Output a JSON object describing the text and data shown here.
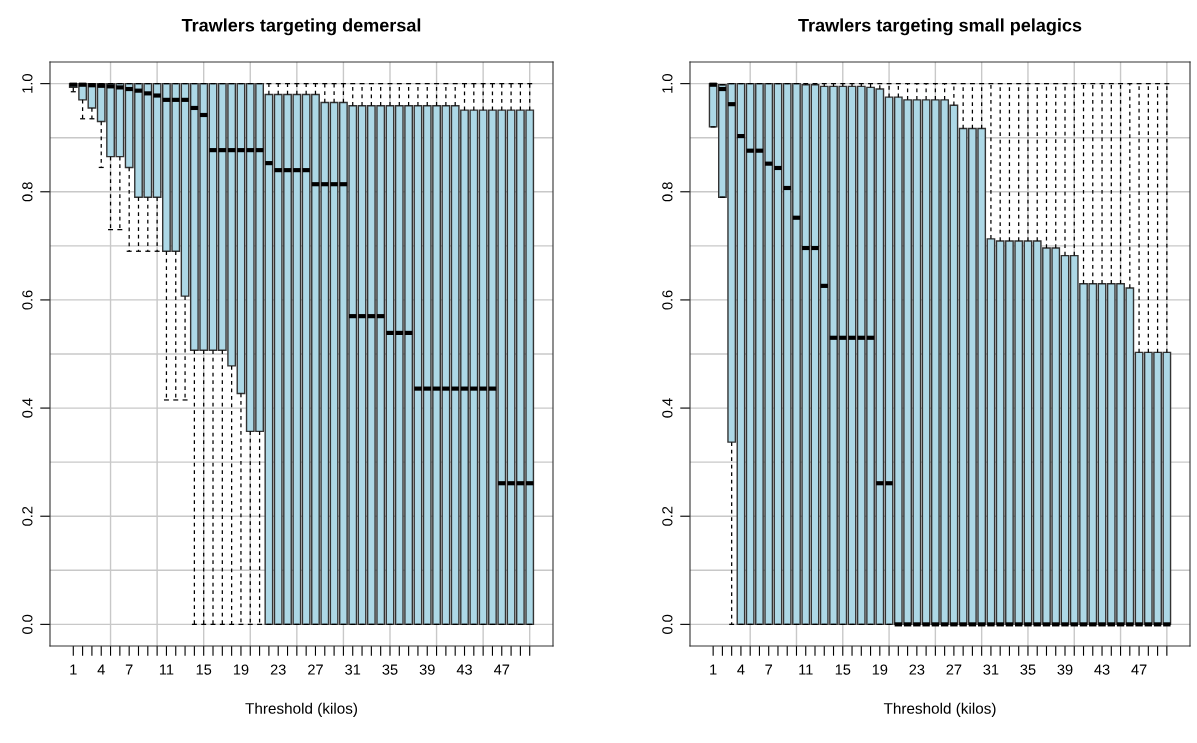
{
  "chart_data": [
    {
      "type": "box",
      "title": "Trawlers targeting demersal",
      "xlabel": "Threshold (kilos)",
      "color": "#add8e6",
      "grid": true,
      "categories": [
        "1",
        null,
        null,
        "4",
        null,
        null,
        "7",
        null,
        null,
        null,
        "11",
        null,
        null,
        null,
        "15",
        null,
        null,
        null,
        "19",
        null,
        null,
        null,
        "23",
        null,
        null,
        null,
        "27",
        null,
        null,
        null,
        "31",
        null,
        null,
        null,
        "35",
        null,
        null,
        null,
        "39",
        null,
        null,
        null,
        "43",
        null,
        null,
        null,
        "47",
        null,
        null,
        null
      ],
      "ylim": [
        -0.04,
        1.04
      ],
      "yticks": [
        {
          "value": 0,
          "label": "0.0"
        },
        {
          "value": 0.2,
          "label": "0.2"
        },
        {
          "value": 0.4,
          "label": "0.4"
        },
        {
          "value": 0.6,
          "label": "0.6"
        },
        {
          "value": 0.8,
          "label": "0.8"
        },
        {
          "value": 1,
          "label": "1.0"
        }
      ],
      "boxes": [
        {
          "low": 0.985,
          "q1": 0.993,
          "median": 0.998,
          "q3": 1,
          "high": 1
        },
        {
          "low": 0.935,
          "q1": 0.97,
          "median": 0.998,
          "q3": 1,
          "high": 1
        },
        {
          "low": 0.935,
          "q1": 0.955,
          "median": 0.997,
          "q3": 1,
          "high": 1
        },
        {
          "low": 0.845,
          "q1": 0.93,
          "median": 0.996,
          "q3": 1,
          "high": 1
        },
        {
          "low": 0.73,
          "q1": 0.865,
          "median": 0.995,
          "q3": 1,
          "high": 1
        },
        {
          "low": 0.73,
          "q1": 0.865,
          "median": 0.993,
          "q3": 1,
          "high": 1
        },
        {
          "low": 0.69,
          "q1": 0.845,
          "median": 0.99,
          "q3": 1,
          "high": 1
        },
        {
          "low": 0.69,
          "q1": 0.79,
          "median": 0.987,
          "q3": 1,
          "high": 1
        },
        {
          "low": 0.69,
          "q1": 0.79,
          "median": 0.982,
          "q3": 1,
          "high": 1
        },
        {
          "low": 0.69,
          "q1": 0.79,
          "median": 0.978,
          "q3": 1,
          "high": 1
        },
        {
          "low": 0.415,
          "q1": 0.69,
          "median": 0.97,
          "q3": 1,
          "high": 1
        },
        {
          "low": 0.415,
          "q1": 0.69,
          "median": 0.97,
          "q3": 1,
          "high": 1
        },
        {
          "low": 0.415,
          "q1": 0.607,
          "median": 0.97,
          "q3": 1,
          "high": 1
        },
        {
          "low": 0,
          "q1": 0.507,
          "median": 0.955,
          "q3": 1,
          "high": 1
        },
        {
          "low": 0,
          "q1": 0.507,
          "median": 0.942,
          "q3": 1,
          "high": 1
        },
        {
          "low": 0,
          "q1": 0.507,
          "median": 0.877,
          "q3": 1,
          "high": 1
        },
        {
          "low": 0,
          "q1": 0.507,
          "median": 0.877,
          "q3": 1,
          "high": 1
        },
        {
          "low": 0,
          "q1": 0.478,
          "median": 0.877,
          "q3": 1,
          "high": 1
        },
        {
          "low": 0,
          "q1": 0.427,
          "median": 0.877,
          "q3": 1,
          "high": 1
        },
        {
          "low": 0,
          "q1": 0.357,
          "median": 0.877,
          "q3": 1,
          "high": 1
        },
        {
          "low": 0,
          "q1": 0.357,
          "median": 0.877,
          "q3": 1,
          "high": 1
        },
        {
          "low": 0,
          "q1": 0,
          "median": 0.853,
          "q3": 0.98,
          "high": 1
        },
        {
          "low": 0,
          "q1": 0,
          "median": 0.84,
          "q3": 0.98,
          "high": 1
        },
        {
          "low": 0,
          "q1": 0,
          "median": 0.84,
          "q3": 0.98,
          "high": 1
        },
        {
          "low": 0,
          "q1": 0,
          "median": 0.84,
          "q3": 0.98,
          "high": 1
        },
        {
          "low": 0,
          "q1": 0,
          "median": 0.84,
          "q3": 0.98,
          "high": 1
        },
        {
          "low": 0,
          "q1": 0,
          "median": 0.814,
          "q3": 0.98,
          "high": 1
        },
        {
          "low": 0,
          "q1": 0,
          "median": 0.814,
          "q3": 0.965,
          "high": 1
        },
        {
          "low": 0,
          "q1": 0,
          "median": 0.814,
          "q3": 0.965,
          "high": 1
        },
        {
          "low": 0,
          "q1": 0,
          "median": 0.814,
          "q3": 0.965,
          "high": 1
        },
        {
          "low": 0,
          "q1": 0,
          "median": 0.57,
          "q3": 0.959,
          "high": 1
        },
        {
          "low": 0,
          "q1": 0,
          "median": 0.57,
          "q3": 0.959,
          "high": 1
        },
        {
          "low": 0,
          "q1": 0,
          "median": 0.57,
          "q3": 0.959,
          "high": 1
        },
        {
          "low": 0,
          "q1": 0,
          "median": 0.57,
          "q3": 0.959,
          "high": 1
        },
        {
          "low": 0,
          "q1": 0,
          "median": 0.539,
          "q3": 0.959,
          "high": 1
        },
        {
          "low": 0,
          "q1": 0,
          "median": 0.539,
          "q3": 0.959,
          "high": 1
        },
        {
          "low": 0,
          "q1": 0,
          "median": 0.539,
          "q3": 0.959,
          "high": 1
        },
        {
          "low": 0,
          "q1": 0,
          "median": 0.436,
          "q3": 0.959,
          "high": 1
        },
        {
          "low": 0,
          "q1": 0,
          "median": 0.436,
          "q3": 0.959,
          "high": 1
        },
        {
          "low": 0,
          "q1": 0,
          "median": 0.436,
          "q3": 0.959,
          "high": 1
        },
        {
          "low": 0,
          "q1": 0,
          "median": 0.436,
          "q3": 0.959,
          "high": 1
        },
        {
          "low": 0,
          "q1": 0,
          "median": 0.436,
          "q3": 0.959,
          "high": 1
        },
        {
          "low": 0,
          "q1": 0,
          "median": 0.436,
          "q3": 0.951,
          "high": 1
        },
        {
          "low": 0,
          "q1": 0,
          "median": 0.436,
          "q3": 0.951,
          "high": 1
        },
        {
          "low": 0,
          "q1": 0,
          "median": 0.436,
          "q3": 0.951,
          "high": 1
        },
        {
          "low": 0,
          "q1": 0,
          "median": 0.436,
          "q3": 0.951,
          "high": 1
        },
        {
          "low": 0,
          "q1": 0,
          "median": 0.261,
          "q3": 0.951,
          "high": 1
        },
        {
          "low": 0,
          "q1": 0,
          "median": 0.261,
          "q3": 0.951,
          "high": 1
        },
        {
          "low": 0,
          "q1": 0,
          "median": 0.261,
          "q3": 0.951,
          "high": 1
        },
        {
          "low": 0,
          "q1": 0,
          "median": 0.261,
          "q3": 0.951,
          "high": 1
        }
      ]
    },
    {
      "type": "box",
      "title": "Trawlers targeting small pelagics",
      "xlabel": "Threshold (kilos)",
      "color": "#add8e6",
      "grid": true,
      "categories": [
        "1",
        null,
        null,
        "4",
        null,
        null,
        "7",
        null,
        null,
        null,
        "11",
        null,
        null,
        null,
        "15",
        null,
        null,
        null,
        "19",
        null,
        null,
        null,
        "23",
        null,
        null,
        null,
        "27",
        null,
        null,
        null,
        "31",
        null,
        null,
        null,
        "35",
        null,
        null,
        null,
        "39",
        null,
        null,
        null,
        "43",
        null,
        null,
        null,
        "47",
        null,
        null,
        null
      ],
      "ylim": [
        -0.04,
        1.04
      ],
      "yticks": [
        {
          "value": 0,
          "label": "0.0"
        },
        {
          "value": 0.2,
          "label": "0.2"
        },
        {
          "value": 0.4,
          "label": "0.4"
        },
        {
          "value": 0.6,
          "label": "0.6"
        },
        {
          "value": 0.8,
          "label": "0.8"
        },
        {
          "value": 1,
          "label": "1.0"
        }
      ],
      "boxes": [
        {
          "low": 0.92,
          "q1": 0.92,
          "median": 0.998,
          "q3": 1,
          "high": 1
        },
        {
          "low": 0.79,
          "q1": 0.79,
          "median": 0.99,
          "q3": 0.998,
          "high": 0.998
        },
        {
          "low": 0,
          "q1": 0.337,
          "median": 0.962,
          "q3": 1,
          "high": 1
        },
        {
          "low": 0,
          "q1": 0,
          "median": 0.903,
          "q3": 1,
          "high": 1
        },
        {
          "low": 0,
          "q1": 0,
          "median": 0.876,
          "q3": 1,
          "high": 1
        },
        {
          "low": 0,
          "q1": 0,
          "median": 0.876,
          "q3": 1,
          "high": 1
        },
        {
          "low": 0,
          "q1": 0,
          "median": 0.852,
          "q3": 1,
          "high": 1
        },
        {
          "low": 0,
          "q1": 0,
          "median": 0.844,
          "q3": 1,
          "high": 1
        },
        {
          "low": 0,
          "q1": 0,
          "median": 0.807,
          "q3": 1,
          "high": 1
        },
        {
          "low": 0,
          "q1": 0,
          "median": 0.752,
          "q3": 1,
          "high": 1
        },
        {
          "low": 0,
          "q1": 0,
          "median": 0.696,
          "q3": 0.998,
          "high": 1
        },
        {
          "low": 0,
          "q1": 0,
          "median": 0.696,
          "q3": 0.998,
          "high": 1
        },
        {
          "low": 0,
          "q1": 0,
          "median": 0.626,
          "q3": 0.995,
          "high": 1
        },
        {
          "low": 0,
          "q1": 0,
          "median": 0.53,
          "q3": 0.995,
          "high": 1
        },
        {
          "low": 0,
          "q1": 0,
          "median": 0.53,
          "q3": 0.995,
          "high": 1
        },
        {
          "low": 0,
          "q1": 0,
          "median": 0.53,
          "q3": 0.995,
          "high": 1
        },
        {
          "low": 0,
          "q1": 0,
          "median": 0.53,
          "q3": 0.995,
          "high": 1
        },
        {
          "low": 0,
          "q1": 0,
          "median": 0.53,
          "q3": 0.993,
          "high": 1
        },
        {
          "low": 0,
          "q1": 0,
          "median": 0.261,
          "q3": 0.99,
          "high": 1
        },
        {
          "low": 0,
          "q1": 0,
          "median": 0.261,
          "q3": 0.975,
          "high": 1
        },
        {
          "low": 0,
          "q1": 0,
          "median": 0,
          "q3": 0.975,
          "high": 1
        },
        {
          "low": 0,
          "q1": 0,
          "median": 0,
          "q3": 0.97,
          "high": 1
        },
        {
          "low": 0,
          "q1": 0,
          "median": 0,
          "q3": 0.97,
          "high": 1
        },
        {
          "low": 0,
          "q1": 0,
          "median": 0,
          "q3": 0.97,
          "high": 1
        },
        {
          "low": 0,
          "q1": 0,
          "median": 0,
          "q3": 0.97,
          "high": 1
        },
        {
          "low": 0,
          "q1": 0,
          "median": 0,
          "q3": 0.97,
          "high": 1
        },
        {
          "low": 0,
          "q1": 0,
          "median": 0,
          "q3": 0.96,
          "high": 1
        },
        {
          "low": 0,
          "q1": 0,
          "median": 0,
          "q3": 0.917,
          "high": 1
        },
        {
          "low": 0,
          "q1": 0,
          "median": 0,
          "q3": 0.917,
          "high": 1
        },
        {
          "low": 0,
          "q1": 0,
          "median": 0,
          "q3": 0.917,
          "high": 1
        },
        {
          "low": 0,
          "q1": 0,
          "median": 0,
          "q3": 0.713,
          "high": 1
        },
        {
          "low": 0,
          "q1": 0,
          "median": 0,
          "q3": 0.709,
          "high": 1
        },
        {
          "low": 0,
          "q1": 0,
          "median": 0,
          "q3": 0.709,
          "high": 1
        },
        {
          "low": 0,
          "q1": 0,
          "median": 0,
          "q3": 0.709,
          "high": 1
        },
        {
          "low": 0,
          "q1": 0,
          "median": 0,
          "q3": 0.709,
          "high": 1
        },
        {
          "low": 0,
          "q1": 0,
          "median": 0,
          "q3": 0.709,
          "high": 1
        },
        {
          "low": 0,
          "q1": 0,
          "median": 0,
          "q3": 0.696,
          "high": 1
        },
        {
          "low": 0,
          "q1": 0,
          "median": 0,
          "q3": 0.696,
          "high": 1
        },
        {
          "low": 0,
          "q1": 0,
          "median": 0,
          "q3": 0.682,
          "high": 1
        },
        {
          "low": 0,
          "q1": 0,
          "median": 0,
          "q3": 0.682,
          "high": 1
        },
        {
          "low": 0,
          "q1": 0,
          "median": 0,
          "q3": 0.63,
          "high": 1
        },
        {
          "low": 0,
          "q1": 0,
          "median": 0,
          "q3": 0.63,
          "high": 1
        },
        {
          "low": 0,
          "q1": 0,
          "median": 0,
          "q3": 0.63,
          "high": 1
        },
        {
          "low": 0,
          "q1": 0,
          "median": 0,
          "q3": 0.63,
          "high": 1
        },
        {
          "low": 0,
          "q1": 0,
          "median": 0,
          "q3": 0.63,
          "high": 1
        },
        {
          "low": 0,
          "q1": 0,
          "median": 0,
          "q3": 0.622,
          "high": 1
        },
        {
          "low": 0,
          "q1": 0,
          "median": 0,
          "q3": 0.503,
          "high": 1
        },
        {
          "low": 0,
          "q1": 0,
          "median": 0,
          "q3": 0.503,
          "high": 1
        },
        {
          "low": 0,
          "q1": 0,
          "median": 0,
          "q3": 0.503,
          "high": 1
        },
        {
          "low": 0,
          "q1": 0,
          "median": 0,
          "q3": 0.503,
          "high": 1
        }
      ]
    }
  ]
}
